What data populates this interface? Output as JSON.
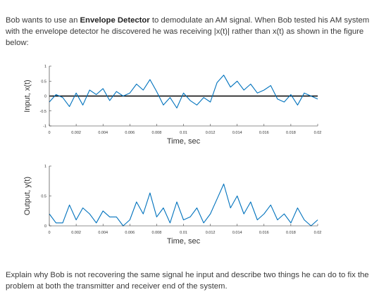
{
  "question": {
    "intro_before": "Bob wants to use an ",
    "intro_bold": "Envelope Detector",
    "intro_after": " to demodulate an AM signal. When Bob tested his AM system with the envelope detector he discovered he was receiving |x(t)| rather than x(t) as shown in the figure below:",
    "closing": "Explain why Bob is not recovering the same signal he input and describe two things he can do to fix the problem at both the transmitter and receiver end of the system."
  },
  "colors": {
    "signal": "#0072bd",
    "axis": "#262626",
    "zero_line": "#000000"
  },
  "chart_data": [
    {
      "type": "line",
      "title": "",
      "xlabel": "Time, sec",
      "ylabel": "Input, x(t)",
      "xlim": [
        0,
        0.02
      ],
      "ylim": [
        -1,
        1
      ],
      "x_ticks": [
        0,
        0.002,
        0.004,
        0.006,
        0.008,
        0.01,
        0.012,
        0.014,
        0.016,
        0.018,
        0.02
      ],
      "x_tick_labels": [
        "0",
        "0.002",
        "0.004",
        "0.006",
        "0.008",
        "0.01",
        "0.012",
        "0.014",
        "0.016",
        "0.018",
        "0.02"
      ],
      "y_ticks": [
        -1,
        -0.5,
        0,
        0.5,
        1
      ],
      "y_tick_labels": [
        "-1",
        "-0.5",
        "0",
        "0.5",
        "1"
      ],
      "zero_line": true,
      "series": [
        {
          "x": [
            0,
            0.0005,
            0.001,
            0.0015,
            0.002,
            0.0025,
            0.003,
            0.0035,
            0.004,
            0.0045,
            0.005,
            0.0055,
            0.006,
            0.0065,
            0.007,
            0.0075,
            0.008,
            0.0085,
            0.009,
            0.0095,
            0.01,
            0.0105,
            0.011,
            0.0115,
            0.012,
            0.0125,
            0.013,
            0.0135,
            0.014,
            0.0145,
            0.015,
            0.0155,
            0.016,
            0.0165,
            0.017,
            0.0175,
            0.018,
            0.0185,
            0.019,
            0.0195,
            0.02
          ],
          "y": [
            -0.2,
            0.05,
            -0.05,
            -0.35,
            0.1,
            -0.3,
            0.2,
            0.05,
            0.25,
            -0.15,
            0.15,
            0.0,
            0.1,
            0.4,
            0.2,
            0.55,
            0.15,
            -0.3,
            -0.05,
            -0.4,
            0.1,
            -0.15,
            -0.3,
            -0.05,
            -0.2,
            0.45,
            0.7,
            0.3,
            0.5,
            0.2,
            0.4,
            0.1,
            0.2,
            0.35,
            -0.1,
            -0.2,
            0.05,
            -0.3,
            0.1,
            0.0,
            -0.1
          ]
        }
      ]
    },
    {
      "type": "line",
      "title": "",
      "xlabel": "Time, sec",
      "ylabel": "Output, y(t)",
      "xlim": [
        0,
        0.02
      ],
      "ylim": [
        0,
        1
      ],
      "x_ticks": [
        0,
        0.002,
        0.004,
        0.006,
        0.008,
        0.01,
        0.012,
        0.014,
        0.016,
        0.018,
        0.02
      ],
      "x_tick_labels": [
        "0",
        "0.002",
        "0.004",
        "0.006",
        "0.008",
        "0.01",
        "0.012",
        "0.014",
        "0.016",
        "0.018",
        "0.02"
      ],
      "y_ticks": [
        0,
        0.5,
        1
      ],
      "y_tick_labels": [
        "0",
        "0.5",
        "1"
      ],
      "zero_line": false,
      "series": [
        {
          "x": [
            0,
            0.0005,
            0.001,
            0.0015,
            0.002,
            0.0025,
            0.003,
            0.0035,
            0.004,
            0.0045,
            0.005,
            0.0055,
            0.006,
            0.0065,
            0.007,
            0.0075,
            0.008,
            0.0085,
            0.009,
            0.0095,
            0.01,
            0.0105,
            0.011,
            0.0115,
            0.012,
            0.0125,
            0.013,
            0.0135,
            0.014,
            0.0145,
            0.015,
            0.0155,
            0.016,
            0.0165,
            0.017,
            0.0175,
            0.018,
            0.0185,
            0.019,
            0.0195,
            0.02
          ],
          "y": [
            0.2,
            0.05,
            0.05,
            0.35,
            0.1,
            0.3,
            0.2,
            0.05,
            0.25,
            0.15,
            0.15,
            0.0,
            0.1,
            0.4,
            0.2,
            0.55,
            0.15,
            0.3,
            0.05,
            0.4,
            0.1,
            0.15,
            0.3,
            0.05,
            0.2,
            0.45,
            0.7,
            0.3,
            0.5,
            0.2,
            0.4,
            0.1,
            0.2,
            0.35,
            0.1,
            0.2,
            0.05,
            0.3,
            0.1,
            0.0,
            0.1
          ]
        }
      ]
    }
  ]
}
